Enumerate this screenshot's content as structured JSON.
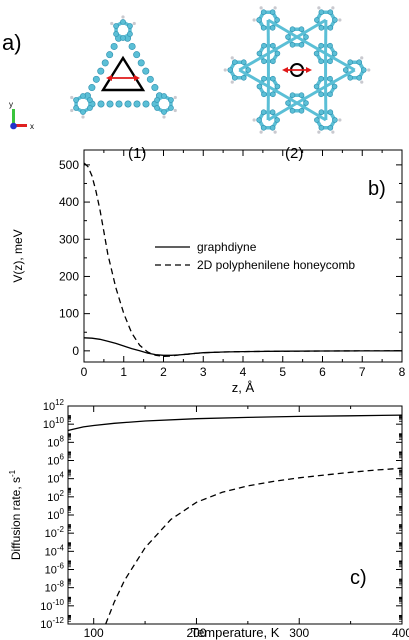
{
  "figure": {
    "panel_a_label": "a)",
    "panel_b_label": "b)",
    "panel_c_label": "c)",
    "molecule_1_label": "(1)",
    "molecule_2_label": "(2)",
    "axis_triad": {
      "y_label": "y",
      "x_label": "x"
    },
    "colors": {
      "carbon": "#5bbfd6",
      "carbon_dark": "#2e8fae",
      "hydrogen": "#c9c9cf",
      "arrow": "#e01818"
    }
  },
  "chart_data": [
    {
      "type": "line",
      "xlabel": "z,  Å",
      "ylabel": "V(z), meV",
      "xlim": [
        0,
        8
      ],
      "ylim": [
        -30,
        540
      ],
      "xticks": [
        "0",
        "1",
        "2",
        "3",
        "4",
        "5",
        "6",
        "7",
        "8"
      ],
      "yticks": [
        "0",
        "100",
        "200",
        "300",
        "400",
        "500"
      ],
      "legend_position": "center-right",
      "series": [
        {
          "name": "graphdiyne",
          "style": "solid",
          "x": [
            0,
            0.2,
            0.4,
            0.6,
            0.8,
            1.0,
            1.2,
            1.4,
            1.6,
            1.8,
            2.0,
            2.2,
            2.4,
            2.6,
            2.8,
            3.0,
            3.5,
            4.0,
            5.0,
            6.0,
            7.0,
            8.0
          ],
          "y": [
            35,
            34,
            31,
            26,
            20,
            13,
            6,
            0,
            -6,
            -10,
            -12,
            -12,
            -11,
            -9,
            -7,
            -5,
            -3,
            -2,
            -1,
            -0.5,
            -0.2,
            0
          ]
        },
        {
          "name": "2D polyphenilene honeycomb",
          "style": "dashed",
          "x": [
            0,
            0.1,
            0.2,
            0.3,
            0.4,
            0.5,
            0.6,
            0.8,
            1.0,
            1.2,
            1.4,
            1.6,
            1.8,
            2.0,
            2.2,
            2.4,
            2.6,
            2.8,
            3.0,
            3.5,
            4.0,
            5.0,
            6.0,
            7.0,
            8.0
          ],
          "y": [
            505,
            495,
            470,
            430,
            380,
            320,
            260,
            170,
            100,
            48,
            15,
            -3,
            -12,
            -15,
            -14,
            -11,
            -9,
            -7,
            -5,
            -3,
            -2,
            -1,
            -0.5,
            -0.2,
            0
          ]
        }
      ]
    },
    {
      "type": "line",
      "xlabel": "Temperature, K",
      "ylabel": "Diffusion rate, s",
      "ylabel_superscript": "-1",
      "xlim": [
        75,
        400
      ],
      "ylim_log10": [
        -12,
        12
      ],
      "xticks": [
        "100",
        "200",
        "300",
        "400"
      ],
      "ytick_mantissa": "10",
      "yticks_exp": [
        "12",
        "10",
        "8",
        "6",
        "4",
        "2",
        "0",
        "-2",
        "-4",
        "-6",
        "-8",
        "-10",
        "-12"
      ],
      "yscale": "log",
      "series": [
        {
          "style": "solid",
          "x": [
            75,
            80,
            90,
            100,
            120,
            150,
            200,
            250,
            300,
            350,
            400
          ],
          "y_log10": [
            9.3,
            9.45,
            9.7,
            9.85,
            10.1,
            10.35,
            10.6,
            10.75,
            10.85,
            10.92,
            11.0
          ]
        },
        {
          "style": "dashed",
          "x": [
            110,
            120,
            130,
            150,
            175,
            200,
            225,
            250,
            275,
            300,
            325,
            350,
            375,
            400
          ],
          "y_log10": [
            -12.5,
            -9.6,
            -7.2,
            -3.6,
            -0.5,
            1.4,
            2.5,
            3.2,
            3.7,
            4.1,
            4.4,
            4.7,
            4.95,
            5.15
          ]
        }
      ]
    }
  ]
}
